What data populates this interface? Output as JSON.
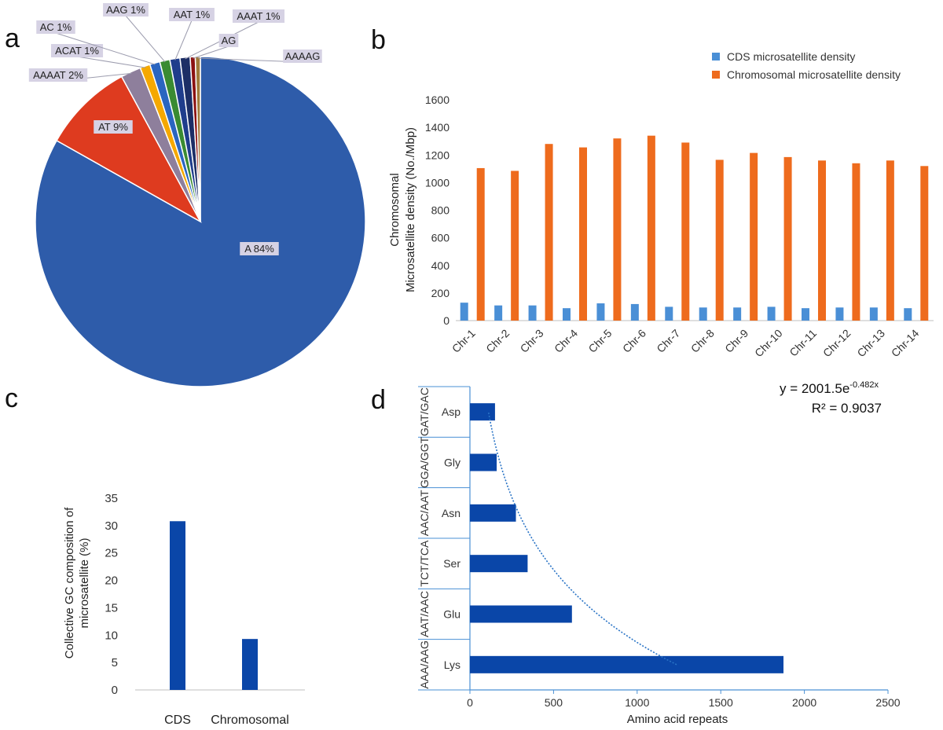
{
  "chart_data": [
    {
      "panel": "a",
      "type": "pie",
      "title": "",
      "labels": [
        "A",
        "AT",
        "AAAAT",
        "ACAT",
        "AC",
        "AAG",
        "AAT",
        "AAAT",
        "AG",
        "AAAAG"
      ],
      "values": [
        84,
        9,
        2,
        1,
        1,
        1,
        1,
        1,
        0.5,
        0.5
      ],
      "label_text": [
        "A 84%",
        "AT 9%",
        "AAAAT 2%",
        "ACAT 1%",
        "AC 1%",
        "AAG 1%",
        "AAT 1%",
        "AAAT 1%",
        "AG",
        "AAAAG"
      ],
      "colors": [
        "#2e5caa",
        "#de3b1f",
        "#8e7f9c",
        "#f5a800",
        "#2a65c0",
        "#3a8b32",
        "#1f3d8c",
        "#1c2e66",
        "#8b1111",
        "#a07a3a"
      ]
    },
    {
      "panel": "b",
      "type": "bar",
      "title": "",
      "categories": [
        "Chr-1",
        "Chr-2",
        "Chr-3",
        "Chr-4",
        "Chr-5",
        "Chr-6",
        "Chr-7",
        "Chr-8",
        "Chr-9",
        "Chr-10",
        "Chr-11",
        "Chr-12",
        "Chr-13",
        "Chr-14"
      ],
      "series": [
        {
          "name": "CDS microsatellite density",
          "color": "#4a8fd6",
          "values": [
            130,
            110,
            110,
            90,
            125,
            120,
            100,
            95,
            95,
            100,
            90,
            95,
            95,
            90
          ]
        },
        {
          "name": "Chromosomal microsatellite density",
          "color": "#ee6b1d",
          "values": [
            1105,
            1085,
            1280,
            1255,
            1320,
            1340,
            1290,
            1165,
            1215,
            1185,
            1160,
            1140,
            1160,
            1120
          ]
        }
      ],
      "ylabel_lines": [
        "Chromosomal",
        "Microsatellite density (No./Mbp)"
      ],
      "xlabel": "",
      "ylim": [
        0,
        1600
      ],
      "yticks": [
        0,
        200,
        400,
        600,
        800,
        1000,
        1200,
        1400,
        1600
      ],
      "legend": "top-right"
    },
    {
      "panel": "c",
      "type": "bar",
      "title": "",
      "categories": [
        "CDS",
        "Chromosomal"
      ],
      "values": [
        30.8,
        9.3
      ],
      "color": "#0a46a8",
      "ylabel_lines": [
        "Collective GC composition of",
        "microsatellite (%)"
      ],
      "xlabel": "",
      "ylim": [
        0,
        35
      ],
      "yticks": [
        0,
        5,
        10,
        15,
        20,
        25,
        30,
        35
      ]
    },
    {
      "panel": "d",
      "type": "bar",
      "orientation": "horizontal",
      "title": "",
      "categories": [
        "Lys",
        "Glu",
        "Ser",
        "Asn",
        "Gly",
        "Asp"
      ],
      "codon_labels": [
        "AAA/AAG",
        "AAT/AAC",
        "TCT/TCA",
        "AAC/AAT",
        "GGA/GGT",
        "GAT/GAC"
      ],
      "values": [
        1875,
        610,
        345,
        275,
        160,
        150
      ],
      "color": "#0a46a8",
      "xlabel": "Amino acid repeats",
      "xlim": [
        0,
        2500
      ],
      "xticks": [
        0,
        500,
        1000,
        1500,
        2000,
        2500
      ],
      "trendline": {
        "type": "exponential",
        "a": 2001.5,
        "b": -0.482,
        "r2": 0.9037
      },
      "equation_text": {
        "prefix": "y = 2001.5e",
        "exponent": "-0.482x",
        "r2_text": "R² = 0.9037"
      }
    }
  ],
  "panel_letters": [
    "a",
    "b",
    "c",
    "d"
  ]
}
